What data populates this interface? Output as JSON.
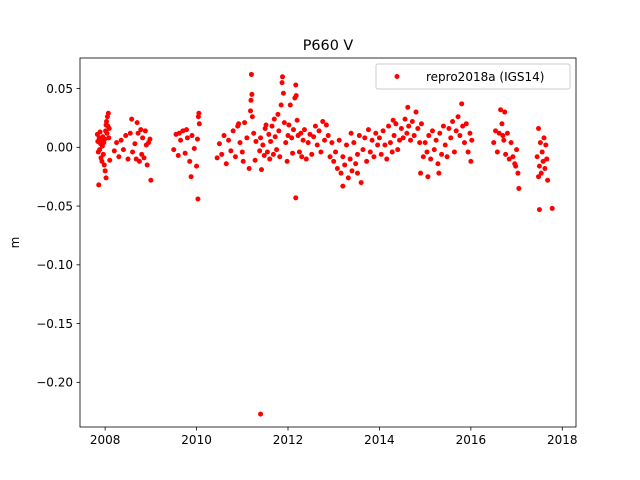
{
  "chart_data": {
    "type": "scatter",
    "title": "P660 V",
    "xlabel": "",
    "ylabel": "m",
    "xlim": [
      2007.45,
      2018.3
    ],
    "ylim": [
      -0.238,
      0.076
    ],
    "xticks": [
      2008,
      2010,
      2012,
      2014,
      2016,
      2018
    ],
    "xtick_labels": [
      "2008",
      "2010",
      "2012",
      "2014",
      "2016",
      "2018"
    ],
    "yticks": [
      0.05,
      0.0,
      -0.05,
      -0.1,
      -0.15,
      -0.2
    ],
    "ytick_labels": [
      "0.05",
      "0.00",
      "−0.05",
      "−0.10",
      "−0.15",
      "−0.20"
    ],
    "grid": false,
    "legend_position": "top-right",
    "colors": {
      "series": "#ff0000",
      "axis": "#000000",
      "legend_border": "#cccccc"
    },
    "series": [
      {
        "name": "repro2018a (IGS14)",
        "marker": "circle",
        "points": [
          [
            2007.83,
            0.011
          ],
          [
            2007.84,
            0.005
          ],
          [
            2007.85,
            -0.004
          ],
          [
            2007.86,
            -0.032
          ],
          [
            2007.87,
            0.008
          ],
          [
            2007.88,
            -0.002
          ],
          [
            2007.89,
            0.013
          ],
          [
            2007.9,
            0.003
          ],
          [
            2007.91,
            -0.009
          ],
          [
            2007.92,
            0.006
          ],
          [
            2007.93,
            -0.012
          ],
          [
            2007.94,
            0.001
          ],
          [
            2007.95,
            0.009
          ],
          [
            2007.96,
            -0.006
          ],
          [
            2007.97,
            0.004
          ],
          [
            2007.98,
            -0.015
          ],
          [
            2007.99,
            0.007
          ],
          [
            2008.0,
            -0.02
          ],
          [
            2008.01,
            0.014
          ],
          [
            2008.02,
            0.019
          ],
          [
            2008.03,
            0.022
          ],
          [
            2008.04,
            0.012
          ],
          [
            2008.05,
            0.026
          ],
          [
            2008.06,
            0.018
          ],
          [
            2008.07,
            0.029
          ],
          [
            2008.08,
            0.008
          ],
          [
            2008.09,
            0.016
          ],
          [
            2008.1,
            -0.011
          ],
          [
            2008.02,
            -0.026
          ],
          [
            2008.2,
            -0.003
          ],
          [
            2008.25,
            0.004
          ],
          [
            2008.3,
            -0.008
          ],
          [
            2008.35,
            0.006
          ],
          [
            2008.4,
            -0.002
          ],
          [
            2008.45,
            0.01
          ],
          [
            2008.5,
            -0.01
          ],
          [
            2008.55,
            0.012
          ],
          [
            2008.6,
            -0.004
          ],
          [
            2008.65,
            0.003
          ],
          [
            2008.7,
            0.021
          ],
          [
            2008.72,
            0.012
          ],
          [
            2008.75,
            -0.012
          ],
          [
            2008.78,
            0.015
          ],
          [
            2008.8,
            -0.006
          ],
          [
            2008.82,
            0.008
          ],
          [
            2008.85,
            -0.009
          ],
          [
            2008.88,
            0.014
          ],
          [
            2008.9,
            0.002
          ],
          [
            2008.92,
            -0.015
          ],
          [
            2008.95,
            0.004
          ],
          [
            2008.98,
            0.007
          ],
          [
            2009.0,
            -0.028
          ],
          [
            2008.68,
            -0.01
          ],
          [
            2008.58,
            0.024
          ],
          [
            2009.5,
            -0.002
          ],
          [
            2009.55,
            0.011
          ],
          [
            2009.6,
            -0.007
          ],
          [
            2009.65,
            0.006
          ],
          [
            2009.7,
            0.014
          ],
          [
            2009.75,
            -0.005
          ],
          [
            2009.8,
            0.008
          ],
          [
            2009.85,
            -0.012
          ],
          [
            2009.9,
            0.01
          ],
          [
            2009.95,
            -0.001
          ],
          [
            2010.0,
            -0.016
          ],
          [
            2010.02,
            0.007
          ],
          [
            2010.04,
            0.026
          ],
          [
            2010.05,
            0.029
          ],
          [
            2010.06,
            0.02
          ],
          [
            2010.03,
            -0.044
          ],
          [
            2009.88,
            -0.025
          ],
          [
            2009.78,
            0.015
          ],
          [
            2009.62,
            0.012
          ],
          [
            2010.45,
            -0.009
          ],
          [
            2010.5,
            0.003
          ],
          [
            2010.55,
            -0.006
          ],
          [
            2010.6,
            0.01
          ],
          [
            2010.65,
            -0.014
          ],
          [
            2010.7,
            0.006
          ],
          [
            2010.75,
            -0.003
          ],
          [
            2010.8,
            0.014
          ],
          [
            2010.85,
            -0.008
          ],
          [
            2010.9,
            0.018
          ],
          [
            2010.95,
            0.004
          ],
          [
            2011.0,
            -0.004
          ],
          [
            2011.05,
            0.021
          ],
          [
            2011.1,
            0.008
          ],
          [
            2011.15,
            -0.018
          ],
          [
            2011.18,
            0.031
          ],
          [
            2011.19,
            0.04
          ],
          [
            2011.2,
            0.062
          ],
          [
            2011.21,
            0.045
          ],
          [
            2011.22,
            0.026
          ],
          [
            2011.25,
            0.012
          ],
          [
            2011.28,
            -0.011
          ],
          [
            2011.3,
            0.005
          ],
          [
            2011.02,
            -0.012
          ],
          [
            2010.92,
            0.02
          ],
          [
            2011.38,
            -0.003
          ],
          [
            2011.4,
            0.008
          ],
          [
            2011.42,
            -0.019
          ],
          [
            2011.45,
            0.002
          ],
          [
            2011.48,
            -0.007
          ],
          [
            2011.5,
            0.016
          ],
          [
            2011.52,
            0.019
          ],
          [
            2011.55,
            -0.004
          ],
          [
            2011.58,
            0.011
          ],
          [
            2011.6,
            -0.01
          ],
          [
            2011.62,
            0.005
          ],
          [
            2011.65,
            0.018
          ],
          [
            2011.68,
            -0.006
          ],
          [
            2011.7,
            0.024
          ],
          [
            2011.72,
            0.009
          ],
          [
            2011.75,
            -0.002
          ],
          [
            2011.78,
            0.028
          ],
          [
            2011.8,
            0.014
          ],
          [
            2011.82,
            -0.008
          ],
          [
            2011.85,
            0.036
          ],
          [
            2011.87,
            0.055
          ],
          [
            2011.88,
            0.06
          ],
          [
            2011.9,
            0.046
          ],
          [
            2011.92,
            0.021
          ],
          [
            2011.95,
            0.004
          ],
          [
            2011.98,
            -0.012
          ],
          [
            2012.0,
            0.01
          ],
          [
            2012.02,
            0.019
          ],
          [
            2012.05,
            0.036
          ],
          [
            2012.08,
            0.008
          ],
          [
            2012.1,
            -0.005
          ],
          [
            2012.12,
            0.015
          ],
          [
            2012.15,
            0.042
          ],
          [
            2012.17,
            0.053
          ],
          [
            2012.18,
            0.044
          ],
          [
            2012.2,
            0.023
          ],
          [
            2012.22,
            0.01
          ],
          [
            2012.25,
            -0.004
          ],
          [
            2012.28,
            0.012
          ],
          [
            2012.3,
            -0.008
          ],
          [
            2012.33,
            0.006
          ],
          [
            2012.36,
            0.015
          ],
          [
            2012.4,
            -0.01
          ],
          [
            2012.44,
            0.004
          ],
          [
            2012.48,
            0.011
          ],
          [
            2012.52,
            -0.006
          ],
          [
            2012.56,
            0.009
          ],
          [
            2012.6,
            0.018
          ],
          [
            2012.64,
            0.002
          ],
          [
            2012.68,
            0.014
          ],
          [
            2012.72,
            -0.004
          ],
          [
            2012.76,
            0.022
          ],
          [
            2012.8,
            0.006
          ],
          [
            2012.84,
            0.019
          ],
          [
            2012.88,
            0.01
          ],
          [
            2012.92,
            -0.008
          ],
          [
            2012.96,
            0.004
          ],
          [
            2012.17,
            -0.043
          ],
          [
            2011.4,
            -0.227
          ],
          [
            2013.0,
            -0.012
          ],
          [
            2013.04,
            -0.004
          ],
          [
            2013.08,
            -0.018
          ],
          [
            2013.12,
            0.006
          ],
          [
            2013.16,
            -0.022
          ],
          [
            2013.2,
            -0.008
          ],
          [
            2013.24,
            -0.015
          ],
          [
            2013.28,
            0.002
          ],
          [
            2013.32,
            -0.026
          ],
          [
            2013.36,
            -0.01
          ],
          [
            2013.4,
            -0.02
          ],
          [
            2013.44,
            0.004
          ],
          [
            2013.48,
            -0.014
          ],
          [
            2013.52,
            -0.006
          ],
          [
            2013.56,
            0.01
          ],
          [
            2013.6,
            -0.03
          ],
          [
            2013.64,
            -0.002
          ],
          [
            2013.68,
            0.008
          ],
          [
            2013.72,
            -0.012
          ],
          [
            2013.76,
            0.015
          ],
          [
            2013.8,
            -0.004
          ],
          [
            2013.84,
            0.006
          ],
          [
            2013.88,
            -0.008
          ],
          [
            2013.92,
            0.012
          ],
          [
            2013.96,
            0.002
          ],
          [
            2013.2,
            -0.033
          ],
          [
            2013.52,
            -0.022
          ],
          [
            2013.38,
            0.012
          ],
          [
            2014.0,
            0.008
          ],
          [
            2014.04,
            -0.006
          ],
          [
            2014.08,
            0.014
          ],
          [
            2014.12,
            0.002
          ],
          [
            2014.16,
            -0.01
          ],
          [
            2014.2,
            0.018
          ],
          [
            2014.24,
            0.004
          ],
          [
            2014.28,
            -0.004
          ],
          [
            2014.32,
            0.01
          ],
          [
            2014.36,
            0.02
          ],
          [
            2014.4,
            -0.002
          ],
          [
            2014.44,
            0.006
          ],
          [
            2014.48,
            0.016
          ],
          [
            2014.52,
            0.008
          ],
          [
            2014.56,
            0.024
          ],
          [
            2014.6,
            0.012
          ],
          [
            2014.62,
            0.034
          ],
          [
            2014.64,
            0.018
          ],
          [
            2014.68,
            0.006
          ],
          [
            2014.72,
            0.022
          ],
          [
            2014.76,
            0.01
          ],
          [
            2014.8,
            0.03
          ],
          [
            2014.84,
            0.016
          ],
          [
            2014.88,
            0.004
          ],
          [
            2014.92,
            0.02
          ],
          [
            2014.96,
            -0.008
          ],
          [
            2014.9,
            -0.022
          ],
          [
            2014.3,
            0.023
          ],
          [
            2015.0,
            0.004
          ],
          [
            2015.04,
            -0.004
          ],
          [
            2015.08,
            0.01
          ],
          [
            2015.12,
            -0.01
          ],
          [
            2015.16,
            0.014
          ],
          [
            2015.2,
            -0.002
          ],
          [
            2015.24,
            0.006
          ],
          [
            2015.28,
            -0.014
          ],
          [
            2015.32,
            0.012
          ],
          [
            2015.36,
            -0.006
          ],
          [
            2015.4,
            0.018
          ],
          [
            2015.44,
            0.002
          ],
          [
            2015.48,
            -0.008
          ],
          [
            2015.52,
            0.016
          ],
          [
            2015.56,
            0.008
          ],
          [
            2015.6,
            0.022
          ],
          [
            2015.64,
            -0.004
          ],
          [
            2015.68,
            0.014
          ],
          [
            2015.72,
            0.026
          ],
          [
            2015.76,
            0.01
          ],
          [
            2015.8,
            0.037
          ],
          [
            2015.82,
            0.018
          ],
          [
            2015.86,
            0.004
          ],
          [
            2015.9,
            0.02
          ],
          [
            2015.94,
            -0.004
          ],
          [
            2015.98,
            0.012
          ],
          [
            2016.0,
            -0.012
          ],
          [
            2016.02,
            0.006
          ],
          [
            2015.3,
            -0.022
          ],
          [
            2015.06,
            -0.025
          ],
          [
            2016.5,
            0.004
          ],
          [
            2016.54,
            0.014
          ],
          [
            2016.58,
            -0.004
          ],
          [
            2016.62,
            0.012
          ],
          [
            2016.65,
            0.032
          ],
          [
            2016.68,
            0.02
          ],
          [
            2016.72,
            0.006
          ],
          [
            2016.74,
            0.03
          ],
          [
            2016.76,
            -0.006
          ],
          [
            2016.8,
            0.012
          ],
          [
            2016.84,
            -0.01
          ],
          [
            2016.88,
            0.004
          ],
          [
            2016.92,
            -0.008
          ],
          [
            2016.96,
            -0.014
          ],
          [
            2017.0,
            -0.002
          ],
          [
            2017.03,
            -0.022
          ],
          [
            2017.05,
            -0.035
          ],
          [
            2016.98,
            -0.016
          ],
          [
            2016.7,
            0.01
          ],
          [
            2017.45,
            -0.008
          ],
          [
            2017.48,
            0.016
          ],
          [
            2017.5,
            -0.016
          ],
          [
            2017.52,
            0.004
          ],
          [
            2017.54,
            -0.022
          ],
          [
            2017.56,
            -0.004
          ],
          [
            2017.58,
            -0.012
          ],
          [
            2017.6,
            0.008
          ],
          [
            2017.62,
            -0.018
          ],
          [
            2017.64,
            0.002
          ],
          [
            2017.66,
            -0.01
          ],
          [
            2017.68,
            -0.028
          ],
          [
            2017.5,
            -0.053
          ],
          [
            2017.78,
            -0.052
          ],
          [
            2017.48,
            -0.025
          ]
        ]
      }
    ]
  }
}
